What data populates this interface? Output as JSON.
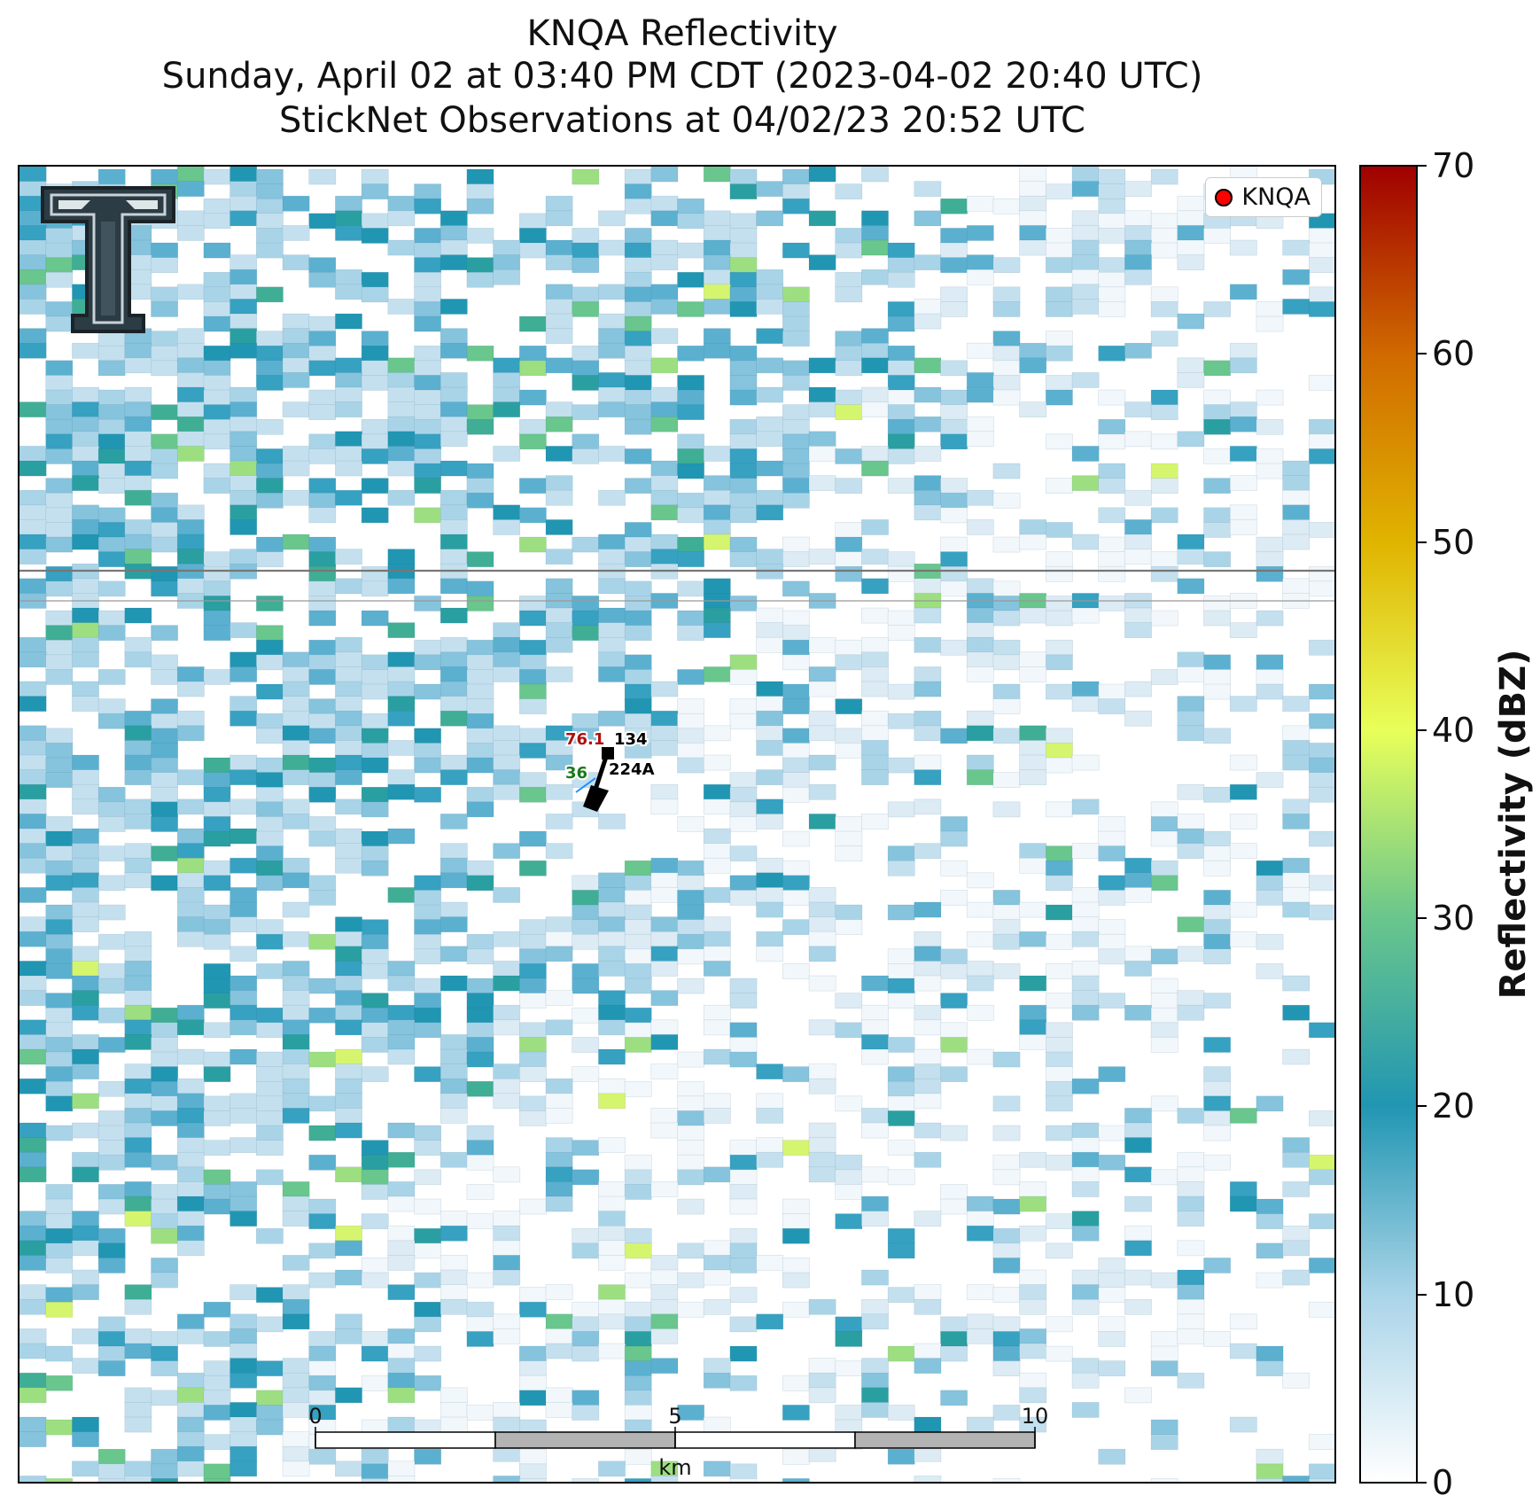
{
  "title": {
    "line1": "KNQA Reflectivity",
    "line2": "Sunday, April 02 at 03:40 PM CDT (2023-04-02 20:40 UTC)",
    "line3": "StickNet Observations at 04/02/23 20:52 UTC"
  },
  "legend": {
    "label": "KNQA",
    "marker_color": "#ff0000"
  },
  "colorbar": {
    "title": "Reflectivity (dBZ)",
    "min": 0,
    "max": 70,
    "ticks": [
      "0",
      "10",
      "20",
      "30",
      "40",
      "50",
      "60",
      "70"
    ],
    "colors": [
      "#ffffff",
      "#a9d4e8",
      "#2196b2",
      "#69c68c",
      "#e8ff5a",
      "#e0b400",
      "#d06a00",
      "#a00000"
    ]
  },
  "station": {
    "temperature": "76.1",
    "pressure": "134",
    "dewpoint": "36",
    "id": "224A",
    "temperature_color": "#b01010",
    "dewpoint_color": "#1a7a1a"
  },
  "scalebar": {
    "labels": [
      "0",
      "5",
      "10"
    ],
    "unit": "km"
  },
  "logo": {
    "name": "Texas Tech T"
  }
}
